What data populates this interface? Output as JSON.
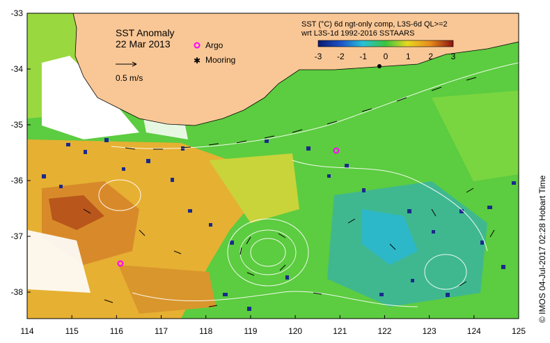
{
  "title": "SST Anomaly",
  "date": "22 Mar 2013",
  "scale_label": "0.5 m/s",
  "legend": {
    "argo": "Argo",
    "mooring": "Mooring"
  },
  "colorbar": {
    "line1": "SST (°C) 6d ngt-only comp, L3S-6d QL>=2",
    "line2": "wrt L3S-1d 1992-2016 SSTAARS",
    "ticks": [
      "-3",
      "-2",
      "-1",
      "0",
      "1",
      "2",
      "3"
    ]
  },
  "axes": {
    "x_ticks": [
      "114",
      "115",
      "116",
      "117",
      "118",
      "119",
      "120",
      "121",
      "122",
      "123",
      "124",
      "125"
    ],
    "y_ticks": [
      "-33",
      "-34",
      "-35",
      "-36",
      "-37",
      "-38"
    ]
  },
  "credit": "© IMOS 04-Jul-2017 02:28 Hobart Time",
  "colors": {
    "land": "#f9c796",
    "cold_dark": "#1a2a8a",
    "cool": "#26b6d2",
    "neutral": "#37c236",
    "warm": "#f0c020",
    "hot": "#c2661c",
    "argo": "#ff00ff"
  }
}
